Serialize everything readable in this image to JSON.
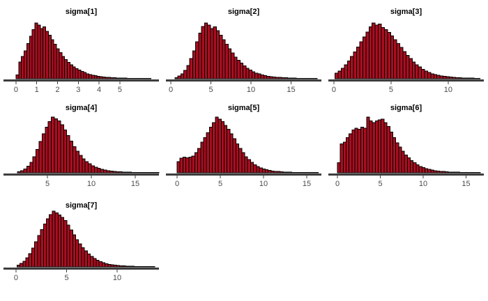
{
  "figure": {
    "kind": "posterior-histogram-grid",
    "panel_count": 7,
    "grid": {
      "columns": 3,
      "rows": 3
    },
    "background": "#ffffff"
  },
  "style": {
    "bar_fill": "#A90E20",
    "bar_stroke": "#000000",
    "axis_line_color": "#3d3d3d",
    "tick_mark_color": "#3d3d3d",
    "tick_label_color": "#4a4a4a",
    "title_color": "#000000"
  },
  "chart_data": [
    {
      "type": "bar",
      "subtype": "histogram",
      "title": "sigma[1]",
      "xlabel": "",
      "ylabel": "",
      "grid": "off",
      "legend": "none",
      "xlim": [
        -0.5,
        6.78
      ],
      "x_ticks": [
        0,
        1,
        2,
        3,
        4,
        5
      ],
      "bin_start": 0.0,
      "bin_width": 0.13,
      "peak_at_x": 0.9,
      "heights_normalized": [
        0.07,
        0.3,
        0.4,
        0.5,
        0.63,
        0.76,
        0.88,
        1.0,
        0.96,
        0.9,
        0.93,
        0.85,
        0.78,
        0.7,
        0.62,
        0.54,
        0.47,
        0.4,
        0.345,
        0.295,
        0.25,
        0.215,
        0.18,
        0.155,
        0.13,
        0.11,
        0.09,
        0.078,
        0.065,
        0.055,
        0.046,
        0.039,
        0.033,
        0.028,
        0.024,
        0.02,
        0.017,
        0.015,
        0.013,
        0.011,
        0.01,
        0.009,
        0.009,
        0.008,
        0.008,
        0.007,
        0.007,
        0.006,
        0.006,
        0.006
      ]
    },
    {
      "type": "bar",
      "subtype": "histogram",
      "title": "sigma[2]",
      "xlabel": "",
      "ylabel": "",
      "grid": "off",
      "legend": "none",
      "xlim": [
        -0.35,
        18.52
      ],
      "x_ticks": [
        0,
        5,
        10,
        15
      ],
      "bin_start": 0.5,
      "bin_width": 0.37,
      "peak_at_x": 4.2,
      "heights_normalized": [
        0.02,
        0.05,
        0.09,
        0.15,
        0.24,
        0.36,
        0.5,
        0.66,
        0.82,
        0.94,
        1.0,
        0.96,
        0.9,
        0.93,
        0.86,
        0.78,
        0.7,
        0.62,
        0.54,
        0.46,
        0.39,
        0.33,
        0.28,
        0.23,
        0.19,
        0.155,
        0.125,
        0.1,
        0.085,
        0.07,
        0.055,
        0.045,
        0.038,
        0.032,
        0.027,
        0.022,
        0.019,
        0.016,
        0.013,
        0.011,
        0.01,
        0.009,
        0.008,
        0.007,
        0.007,
        0.006,
        0.006,
        0.005
      ]
    },
    {
      "type": "bar",
      "subtype": "histogram",
      "title": "sigma[3]",
      "xlabel": "",
      "ylabel": "",
      "grid": "off",
      "legend": "none",
      "xlim": [
        -0.3,
        12.93
      ],
      "x_ticks": [
        0,
        5,
        10
      ],
      "bin_start": 0.1,
      "bin_width": 0.27,
      "peak_at_x": 3.4,
      "heights_normalized": [
        0.1,
        0.14,
        0.19,
        0.25,
        0.32,
        0.4,
        0.48,
        0.57,
        0.66,
        0.75,
        0.84,
        0.93,
        1.0,
        0.96,
        0.98,
        0.92,
        0.88,
        0.83,
        0.77,
        0.7,
        0.63,
        0.56,
        0.49,
        0.42,
        0.36,
        0.3,
        0.25,
        0.21,
        0.17,
        0.14,
        0.11,
        0.09,
        0.075,
        0.06,
        0.05,
        0.042,
        0.035,
        0.029,
        0.024,
        0.02,
        0.017,
        0.015,
        0.013,
        0.011,
        0.01,
        0.009,
        0.008
      ]
    },
    {
      "type": "bar",
      "subtype": "histogram",
      "title": "sigma[4]",
      "xlabel": "",
      "ylabel": "",
      "grid": "off",
      "legend": "none",
      "xlim": [
        0.24,
        17.46
      ],
      "x_ticks": [
        5,
        10,
        15
      ],
      "bin_start": 1.6,
      "bin_width": 0.35,
      "peak_at_x": 5.6,
      "heights_normalized": [
        0.02,
        0.04,
        0.07,
        0.12,
        0.19,
        0.29,
        0.42,
        0.56,
        0.7,
        0.82,
        0.92,
        1.0,
        0.97,
        0.93,
        0.86,
        0.77,
        0.67,
        0.57,
        0.47,
        0.385,
        0.31,
        0.25,
        0.2,
        0.16,
        0.125,
        0.1,
        0.08,
        0.063,
        0.05,
        0.04,
        0.032,
        0.026,
        0.021,
        0.017,
        0.014,
        0.012,
        0.01,
        0.009,
        0.008,
        0.007,
        0.006,
        0.006,
        0.005,
        0.005,
        0.004,
        0.004
      ]
    },
    {
      "type": "bar",
      "subtype": "histogram",
      "title": "sigma[5]",
      "xlabel": "",
      "ylabel": "",
      "grid": "off",
      "legend": "none",
      "xlim": [
        -1.05,
        16.45
      ],
      "x_ticks": [
        0,
        5,
        10,
        15
      ],
      "bin_start": 0.0,
      "bin_width": 0.34,
      "peak_at_x": 4.4,
      "heights_normalized": [
        0.2,
        0.26,
        0.28,
        0.27,
        0.28,
        0.3,
        0.36,
        0.44,
        0.55,
        0.63,
        0.72,
        0.82,
        0.9,
        1.0,
        0.96,
        0.92,
        0.85,
        0.78,
        0.7,
        0.61,
        0.52,
        0.435,
        0.36,
        0.29,
        0.235,
        0.185,
        0.145,
        0.115,
        0.09,
        0.07,
        0.055,
        0.043,
        0.034,
        0.027,
        0.022,
        0.018,
        0.015,
        0.012,
        0.011,
        0.009,
        0.008,
        0.007,
        0.007,
        0.006,
        0.006,
        0.006,
        0.006,
        0.006
      ]
    },
    {
      "type": "bar",
      "subtype": "histogram",
      "title": "sigma[6]",
      "xlabel": "",
      "ylabel": "",
      "grid": "off",
      "legend": "none",
      "xlim": [
        -0.81,
        16.83
      ],
      "x_ticks": [
        0,
        5,
        10,
        15
      ],
      "bin_start": 0.0,
      "bin_width": 0.34,
      "peak_at_x": 3.6,
      "heights_normalized": [
        0.18,
        0.52,
        0.55,
        0.63,
        0.7,
        0.77,
        0.8,
        0.78,
        0.82,
        0.8,
        1.0,
        0.93,
        0.9,
        0.93,
        0.95,
        0.96,
        0.9,
        0.83,
        0.73,
        0.63,
        0.54,
        0.46,
        0.39,
        0.32,
        0.27,
        0.22,
        0.18,
        0.145,
        0.115,
        0.092,
        0.075,
        0.06,
        0.05,
        0.04,
        0.033,
        0.027,
        0.022,
        0.018,
        0.015,
        0.013,
        0.011,
        0.01,
        0.009,
        0.008,
        0.007,
        0.007,
        0.006,
        0.006,
        0.006
      ]
    },
    {
      "type": "bar",
      "subtype": "histogram",
      "title": "sigma[7]",
      "xlabel": "",
      "ylabel": "",
      "grid": "off",
      "legend": "none",
      "xlim": [
        -1.03,
        13.93
      ],
      "x_ticks": [
        0,
        5,
        10
      ],
      "bin_start": 0.1,
      "bin_width": 0.29,
      "peak_at_x": 3.6,
      "heights_normalized": [
        0.03,
        0.06,
        0.1,
        0.16,
        0.24,
        0.34,
        0.45,
        0.56,
        0.67,
        0.77,
        0.86,
        0.94,
        1.0,
        0.97,
        0.93,
        0.89,
        0.83,
        0.75,
        0.66,
        0.575,
        0.49,
        0.415,
        0.345,
        0.285,
        0.23,
        0.185,
        0.147,
        0.116,
        0.091,
        0.072,
        0.057,
        0.045,
        0.036,
        0.029,
        0.024,
        0.02,
        0.017,
        0.014,
        0.012,
        0.011,
        0.009,
        0.008,
        0.007,
        0.007,
        0.006,
        0.006,
        0.006
      ]
    }
  ]
}
